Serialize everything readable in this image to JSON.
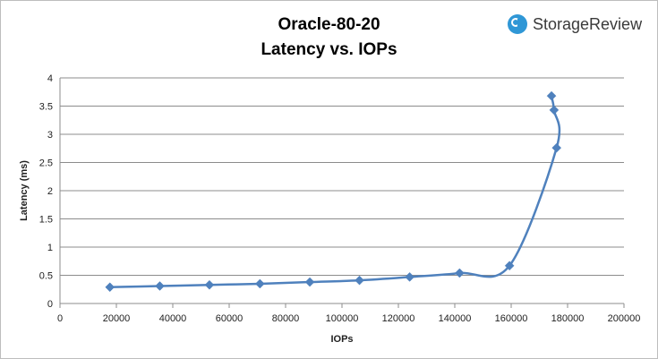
{
  "chart_data": {
    "type": "line",
    "title": "Oracle-80-20",
    "subtitle": "Latency vs. IOPs",
    "xlabel": "IOPs",
    "ylabel": "Latency (ms)",
    "xlim": [
      0,
      200000
    ],
    "ylim": [
      0,
      4
    ],
    "x_ticks": [
      0,
      20000,
      40000,
      60000,
      80000,
      100000,
      120000,
      140000,
      160000,
      180000,
      200000
    ],
    "y_ticks": [
      0,
      0.5,
      1,
      1.5,
      2,
      2.5,
      3,
      3.5,
      4
    ],
    "grid": "horizontal",
    "series": [
      {
        "color": "#4f81bd",
        "x": [
          17700,
          35400,
          53000,
          70900,
          88600,
          106200,
          124000,
          141700,
          159400,
          176100,
          175200,
          174300
        ],
        "y": [
          0.29,
          0.31,
          0.33,
          0.35,
          0.38,
          0.41,
          0.47,
          0.54,
          0.67,
          2.76,
          3.43,
          3.68
        ]
      }
    ]
  },
  "logo": {
    "text": "StorageReview",
    "color": "#2f97d6"
  }
}
